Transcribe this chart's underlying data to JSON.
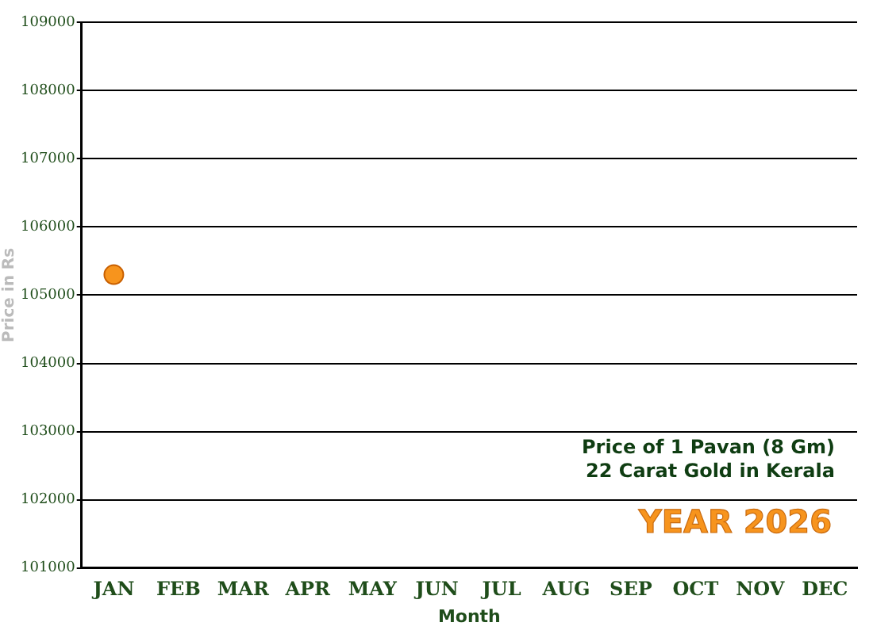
{
  "chart_data": {
    "type": "line",
    "xlabel": "Month",
    "ylabel": "Price in Rs",
    "categories": [
      "JAN",
      "FEB",
      "MAR",
      "APR",
      "MAY",
      "JUN",
      "JUL",
      "AUG",
      "SEP",
      "OCT",
      "NOV",
      "DEC"
    ],
    "series": [
      {
        "color": "#f7941d",
        "values": [
          105300,
          null,
          null,
          null,
          null,
          null,
          null,
          null,
          null,
          null,
          null,
          null
        ]
      }
    ],
    "ylim": [
      101000,
      109000
    ],
    "yticks": [
      101000,
      102000,
      103000,
      104000,
      105000,
      106000,
      107000,
      108000,
      109000
    ],
    "grid": "y",
    "legend": false,
    "marker": "circle",
    "annotations": [
      "Price of 1 Pavan (8 Gm)",
      "22 Carat Gold in Kerala",
      "YEAR 2026"
    ]
  }
}
